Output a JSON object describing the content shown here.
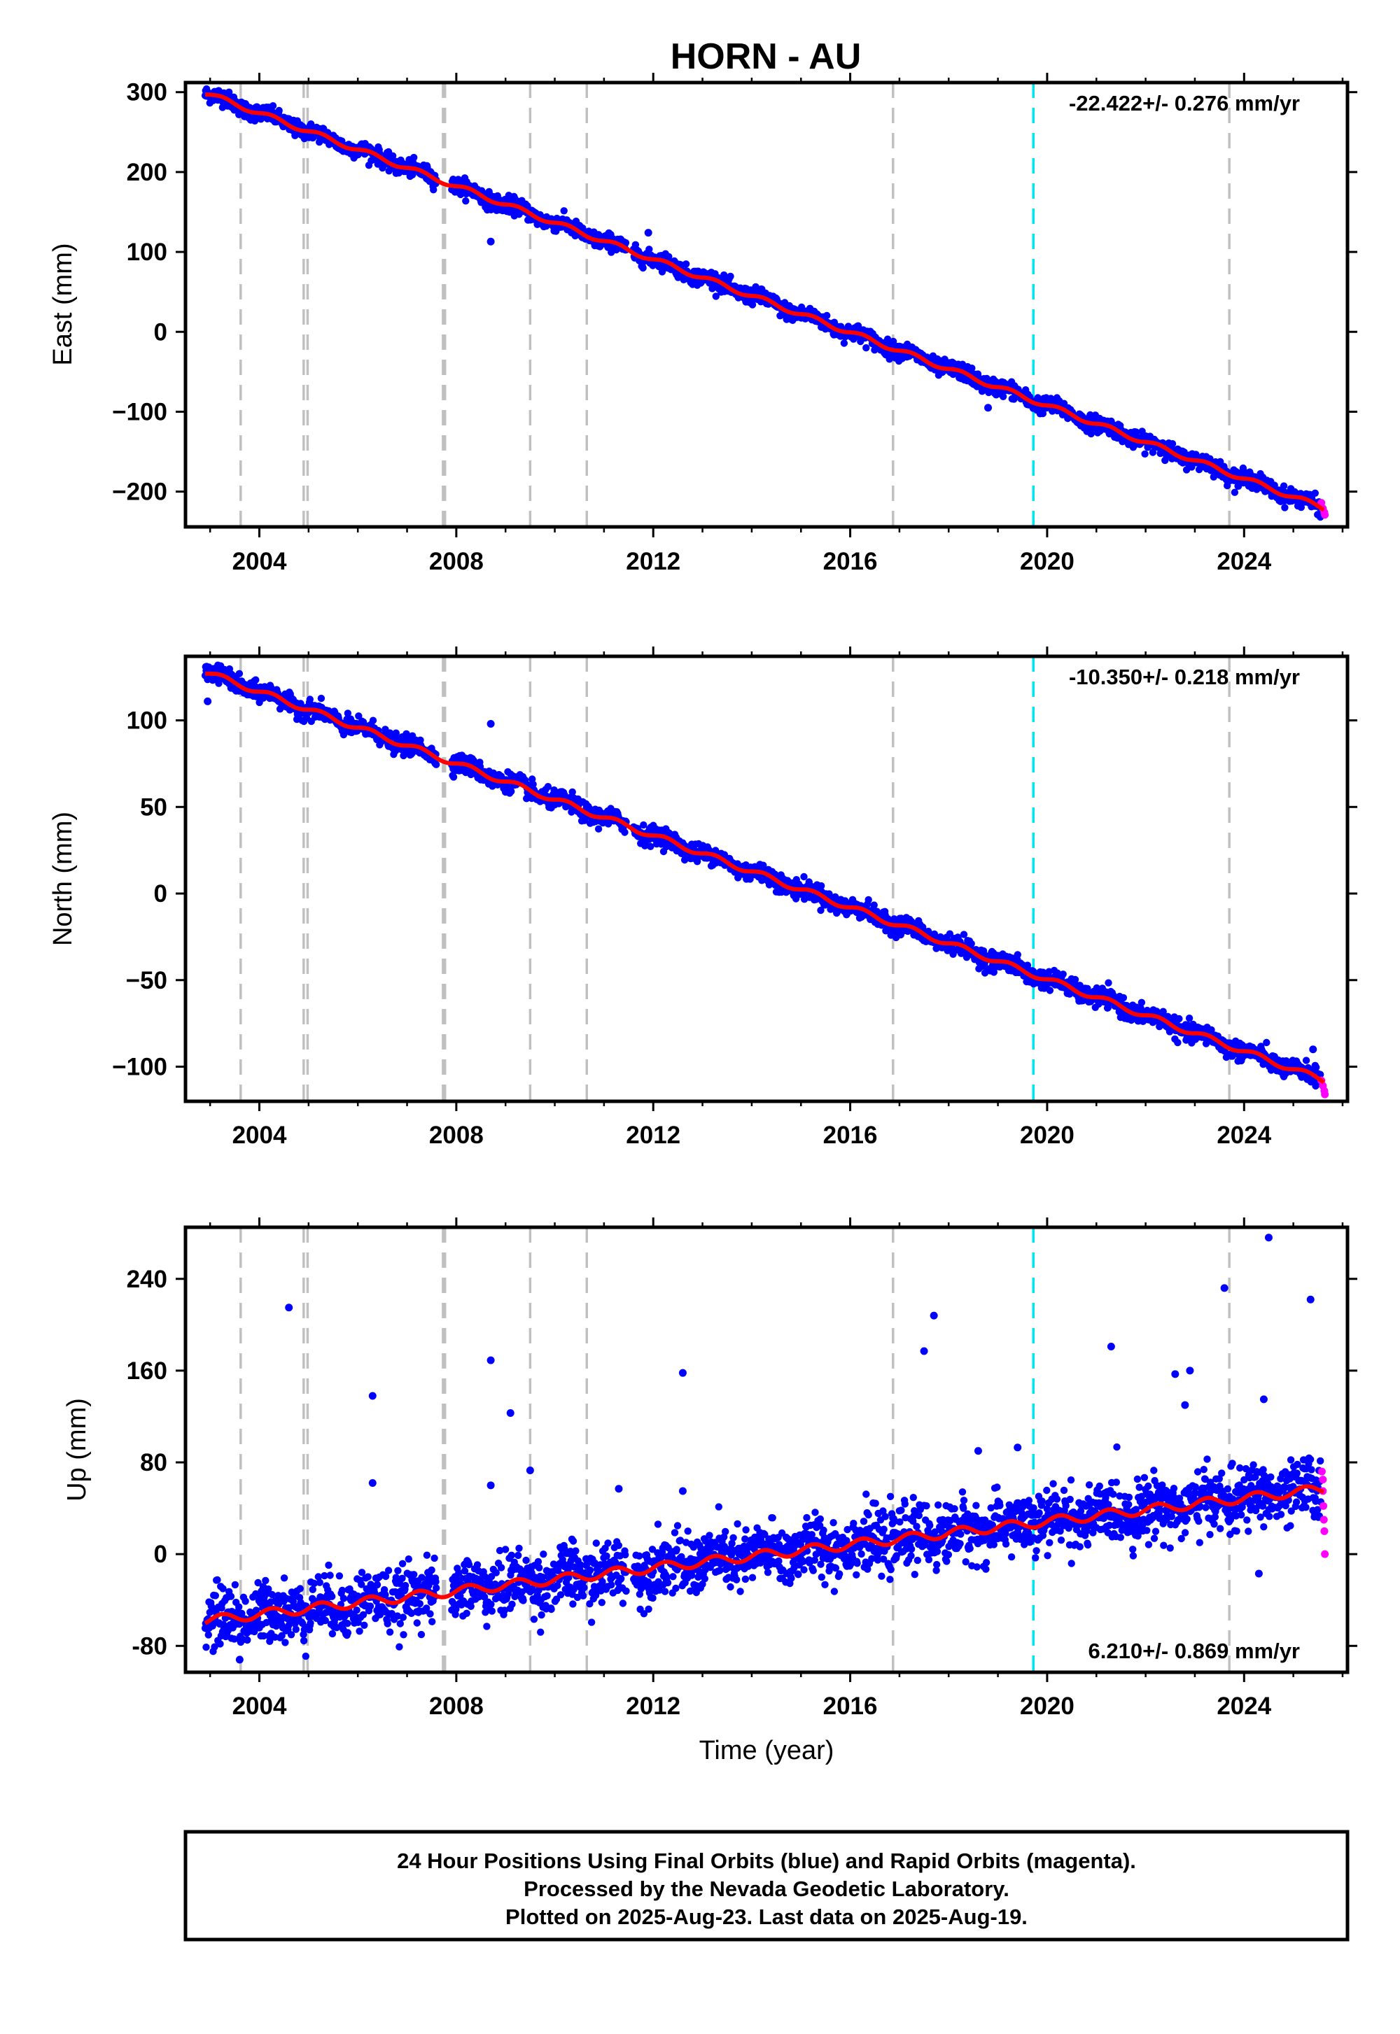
{
  "title": "HORN - AU",
  "colors": {
    "final": "#0000ff",
    "rapid": "#ff00ff",
    "model": "#ff0000",
    "equipment_change": "#c0c0c0",
    "earthquake": "#00e5ee"
  },
  "footer": {
    "line1": "24 Hour Positions Using Final Orbits (blue) and Rapid Orbits (magenta).",
    "line2": "Processed by the Nevada Geodetic Laboratory.",
    "line3": "Plotted on 2025-Aug-23. Last data on 2025-Aug-19."
  },
  "chart_data": [
    {
      "type": "scatter",
      "component": "east",
      "ylabel": "East (mm)",
      "xlabel": "",
      "xlim": [
        2002.5,
        2026.1
      ],
      "ylim": [
        -245,
        312
      ],
      "yticks": [
        -200,
        -100,
        0,
        100,
        200,
        300
      ],
      "ytick_labels": [
        "−200",
        "−100",
        "0",
        "100",
        "200",
        "300"
      ],
      "xticks": [
        2004,
        2008,
        2012,
        2016,
        2020,
        2024
      ],
      "xtick_labels": [
        "2004",
        "2008",
        "2012",
        "2016",
        "2020",
        "2024"
      ],
      "rate_label": "-22.422+/- 0.276 mm/yr",
      "rate_position": "top-right",
      "start_year": 2002.9,
      "end_year": 2025.63,
      "start_value": 299,
      "end_value": -221,
      "scatter_sd": 5,
      "seasonal_amplitude": 3,
      "steps": [],
      "outliers": [
        [
          2008.7,
          113
        ],
        [
          2011.9,
          124
        ],
        [
          2018.8,
          -95
        ]
      ],
      "rapid_points": [
        [
          2025.57,
          -214
        ],
        [
          2025.6,
          -221
        ],
        [
          2025.63,
          -226
        ],
        [
          2025.64,
          -229
        ]
      ]
    },
    {
      "type": "scatter",
      "component": "north",
      "ylabel": "North (mm)",
      "xlabel": "",
      "xlim": [
        2002.5,
        2026.1
      ],
      "ylim": [
        -120,
        137
      ],
      "yticks": [
        -100,
        -50,
        0,
        50,
        100
      ],
      "ytick_labels": [
        "−100",
        "−50",
        "0",
        "50",
        "100"
      ],
      "xticks": [
        2004,
        2008,
        2012,
        2016,
        2020,
        2024
      ],
      "xtick_labels": [
        "2004",
        "2008",
        "2012",
        "2016",
        "2020",
        "2024"
      ],
      "rate_label": "-10.350+/- 0.218 mm/yr",
      "rate_position": "top-right",
      "start_year": 2002.9,
      "end_year": 2025.63,
      "start_value": 128,
      "end_value": -108,
      "scatter_sd": 2.6,
      "seasonal_amplitude": 1.6,
      "steps": [],
      "outliers": [
        [
          2002.95,
          111
        ],
        [
          2008.7,
          98
        ],
        [
          2011.7,
          33
        ],
        [
          2025.4,
          -90
        ]
      ],
      "rapid_points": [
        [
          2025.57,
          -108
        ],
        [
          2025.6,
          -111
        ],
        [
          2025.63,
          -114
        ],
        [
          2025.64,
          -116
        ]
      ]
    },
    {
      "type": "scatter",
      "component": "up",
      "ylabel": "Up (mm)",
      "xlabel": "Time (year)",
      "xlim": [
        2002.5,
        2026.1
      ],
      "ylim": [
        -103,
        285
      ],
      "yticks": [
        -80,
        0,
        80,
        160,
        240
      ],
      "ytick_labels": [
        "-80",
        "0",
        "80",
        "160",
        "240"
      ],
      "xticks": [
        2004,
        2008,
        2012,
        2016,
        2020,
        2024
      ],
      "xtick_labels": [
        "2004",
        "2008",
        "2012",
        "2016",
        "2020",
        "2024"
      ],
      "rate_label": "6.210+/- 0.869 mm/yr",
      "rate_position": "bottom-right",
      "start_year": 2002.9,
      "end_year": 2025.63,
      "start_value": -58,
      "end_value": 57,
      "scatter_sd": 13,
      "seasonal_amplitude": 4,
      "steps": [],
      "outliers": [
        [
          2003.6,
          -92
        ],
        [
          2004.6,
          215
        ],
        [
          2006.3,
          138
        ],
        [
          2006.3,
          62
        ],
        [
          2008.7,
          169
        ],
        [
          2008.7,
          60
        ],
        [
          2009.1,
          123
        ],
        [
          2009.5,
          73
        ],
        [
          2011.3,
          57
        ],
        [
          2012.6,
          158
        ],
        [
          2012.6,
          55
        ],
        [
          2017.5,
          177
        ],
        [
          2017.7,
          208
        ],
        [
          2018.6,
          90
        ],
        [
          2019.4,
          93
        ],
        [
          2021.3,
          181
        ],
        [
          2022.6,
          157
        ],
        [
          2022.9,
          160
        ],
        [
          2022.8,
          130
        ],
        [
          2023.6,
          232
        ],
        [
          2024.5,
          276
        ],
        [
          2024.4,
          135
        ],
        [
          2025.35,
          222
        ],
        [
          2024.3,
          -17
        ]
      ],
      "rapid_points": [
        [
          2025.58,
          72
        ],
        [
          2025.6,
          55
        ],
        [
          2025.61,
          42
        ],
        [
          2025.62,
          30
        ],
        [
          2025.63,
          20
        ],
        [
          2025.64,
          0
        ],
        [
          2025.6,
          65
        ]
      ]
    }
  ],
  "equipment_changes": [
    2003.62,
    2004.9,
    2004.98,
    2007.73,
    2007.77,
    2009.5,
    2010.65,
    2016.87,
    2023.7
  ],
  "earthquakes": [
    2019.72
  ]
}
